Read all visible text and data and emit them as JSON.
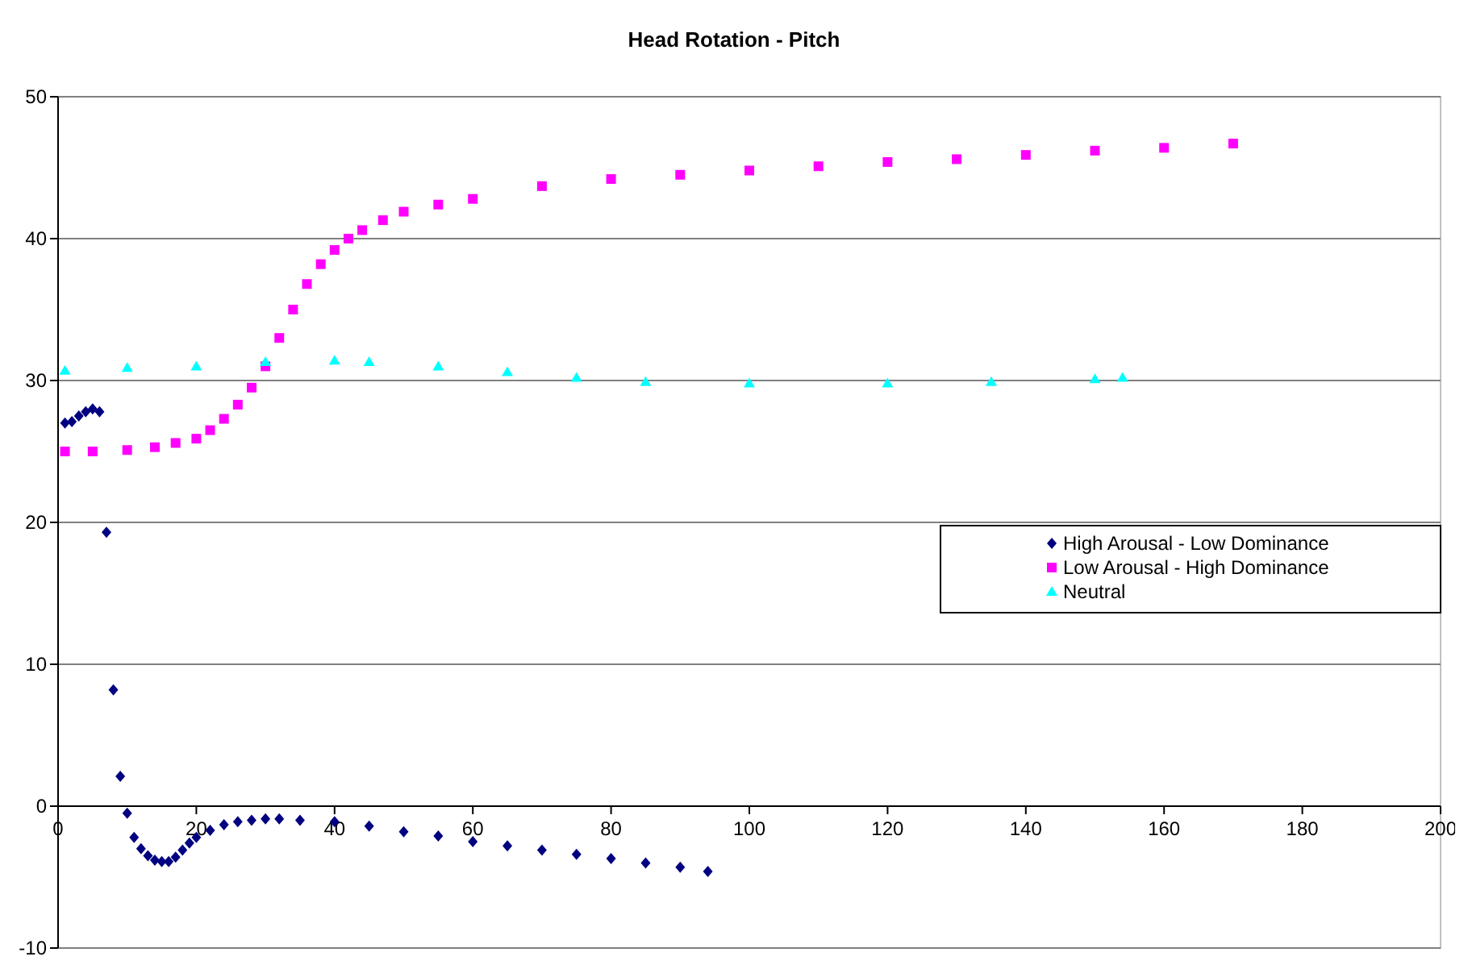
{
  "chart_data": {
    "type": "scatter",
    "title": "Head Rotation - Pitch",
    "xlim": [
      0,
      200
    ],
    "ylim": [
      -10,
      50
    ],
    "xticks": [
      0,
      20,
      40,
      60,
      80,
      100,
      120,
      140,
      160,
      180,
      200
    ],
    "yticks": [
      -10,
      0,
      10,
      20,
      30,
      40,
      50
    ],
    "grid": "y",
    "legend": "right",
    "series": [
      {
        "name": "High Arousal - Low Dominance",
        "color": "#000080",
        "marker": "diamond",
        "x": [
          1,
          2,
          3,
          4,
          5,
          6,
          7,
          8,
          9,
          10,
          11,
          12,
          13,
          14,
          15,
          16,
          17,
          18,
          19,
          20,
          22,
          24,
          26,
          28,
          30,
          32,
          35,
          40,
          45,
          50,
          55,
          60,
          65,
          70,
          75,
          80,
          85,
          90,
          94
        ],
        "values": [
          27.0,
          27.1,
          27.5,
          27.8,
          28.0,
          27.8,
          19.3,
          8.2,
          2.1,
          -0.5,
          -2.2,
          -3.0,
          -3.5,
          -3.8,
          -3.9,
          -3.9,
          -3.6,
          -3.1,
          -2.6,
          -2.2,
          -1.7,
          -1.3,
          -1.1,
          -1.0,
          -0.9,
          -0.9,
          -1.0,
          -1.1,
          -1.4,
          -1.8,
          -2.1,
          -2.5,
          -2.8,
          -3.1,
          -3.4,
          -3.7,
          -4.0,
          -4.3,
          -4.6
        ]
      },
      {
        "name": "Low Arousal - High Dominance",
        "color": "#ff00ff",
        "marker": "square",
        "x": [
          1,
          5,
          10,
          14,
          17,
          20,
          22,
          24,
          26,
          28,
          30,
          32,
          34,
          36,
          38,
          40,
          42,
          44,
          47,
          50,
          55,
          60,
          70,
          80,
          90,
          100,
          110,
          120,
          130,
          140,
          150,
          160,
          170
        ],
        "values": [
          25.0,
          25.0,
          25.1,
          25.3,
          25.6,
          25.9,
          26.5,
          27.3,
          28.3,
          29.5,
          31.0,
          33.0,
          35.0,
          36.8,
          38.2,
          39.2,
          40.0,
          40.6,
          41.3,
          41.9,
          42.4,
          42.8,
          43.7,
          44.2,
          44.5,
          44.8,
          45.1,
          45.4,
          45.6,
          45.9,
          46.2,
          46.4,
          46.7
        ]
      },
      {
        "name": "Neutral",
        "color": "#00ffff",
        "marker": "triangle",
        "x": [
          1,
          10,
          20,
          30,
          40,
          45,
          55,
          65,
          75,
          85,
          100,
          120,
          135,
          150,
          154
        ],
        "values": [
          30.7,
          30.9,
          31.0,
          31.3,
          31.4,
          31.3,
          31.0,
          30.6,
          30.2,
          29.9,
          29.8,
          29.8,
          29.9,
          30.1,
          30.2
        ]
      }
    ]
  }
}
